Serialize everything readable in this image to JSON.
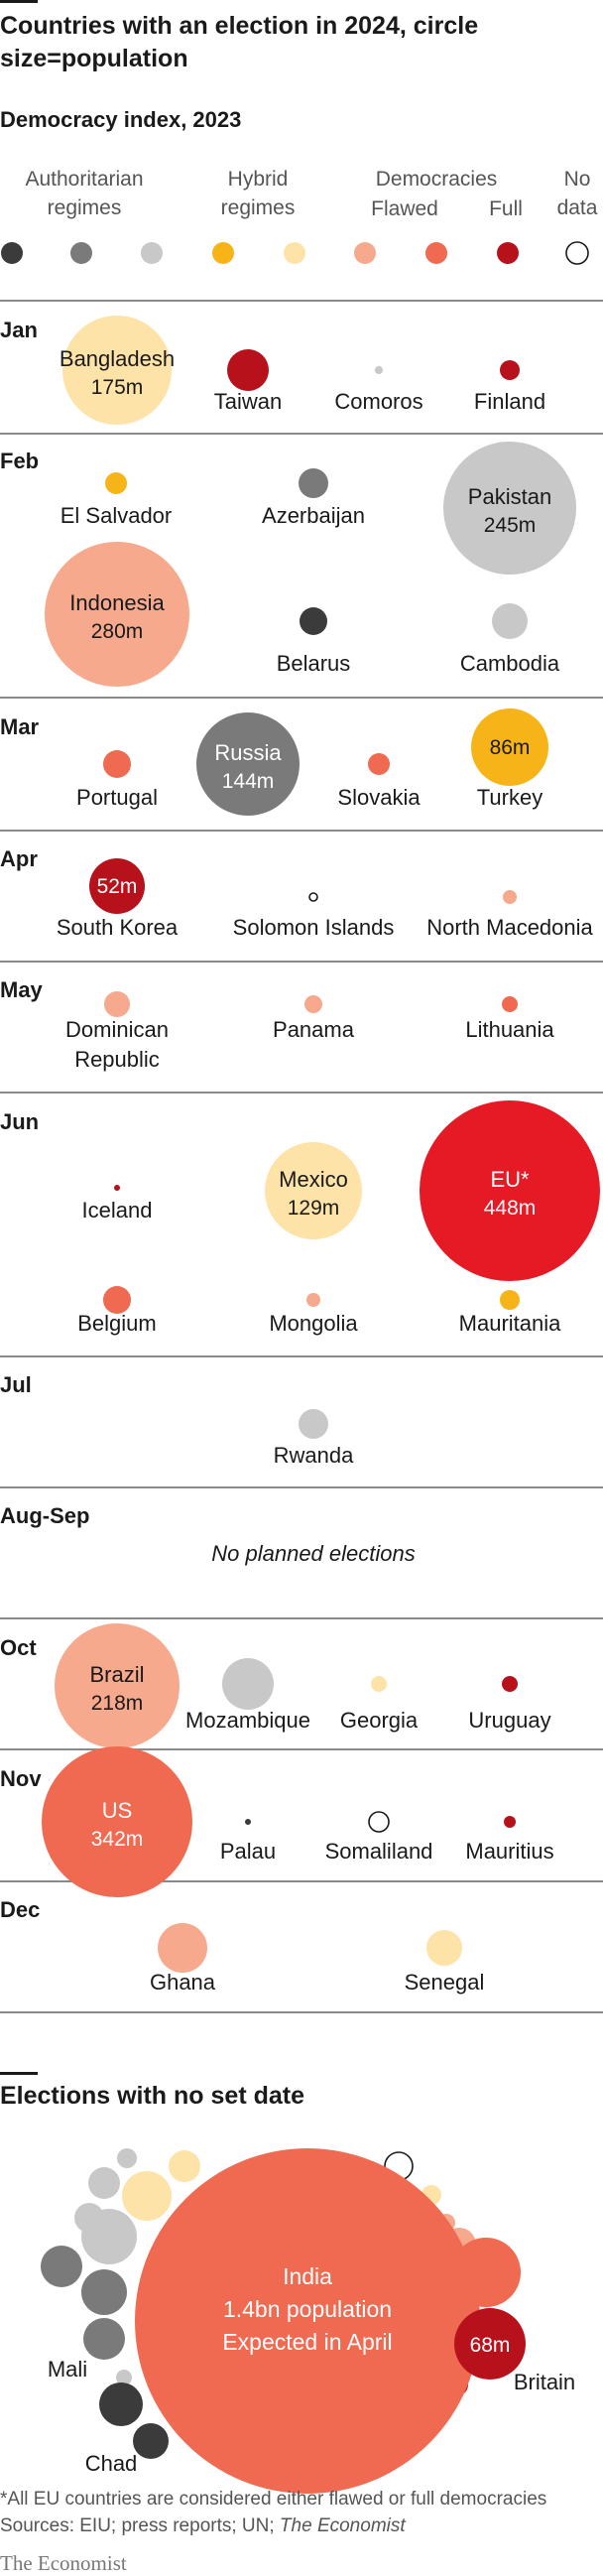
{
  "title": "Countries with an election in 2024, circle size=population",
  "subtitle": "Democracy index, 2023",
  "legend": {
    "groups": [
      {
        "label": "Authoritarian regimes"
      },
      {
        "label": "Hybrid regimes"
      },
      {
        "label": "Democracies"
      },
      {
        "label": "No data"
      }
    ],
    "sublabels": [
      "Flawed",
      "Full"
    ],
    "swatches": [
      "#3b3b3b",
      "#7a7a7a",
      "#c8c8c8",
      "#f6b418",
      "#fde3a8",
      "#f6a98c",
      "#ef6a50",
      "#b7121c",
      "#ffffff"
    ]
  },
  "months": [
    {
      "label": "Jan"
    },
    {
      "label": "Feb"
    },
    {
      "label": "Mar"
    },
    {
      "label": "Apr"
    },
    {
      "label": "May"
    },
    {
      "label": "Jun"
    },
    {
      "label": "Jul"
    },
    {
      "label": "Aug-Sep"
    },
    {
      "label": "Oct"
    },
    {
      "label": "Nov"
    },
    {
      "label": "Dec"
    }
  ],
  "no_planned": "No planned elections",
  "chart_data": {
    "type": "bubble",
    "title": "Countries with an election in 2024, circle size=population",
    "subtitle": "Democracy index, 2023",
    "category_colors": {
      "authoritarian_1": "#3b3b3b",
      "authoritarian_2": "#7a7a7a",
      "authoritarian_3": "#c8c8c8",
      "hybrid_1": "#f6b418",
      "hybrid_2": "#fde3a8",
      "flawed_1": "#f6a98c",
      "flawed_2": "#ef6a50",
      "full": "#b7121c",
      "eu": "#e51a24",
      "no_data": "#ffffff"
    },
    "elections": [
      {
        "month": "Jan",
        "country": "Bangladesh",
        "population": "175m",
        "category": "hybrid_2"
      },
      {
        "month": "Jan",
        "country": "Taiwan",
        "category": "full"
      },
      {
        "month": "Jan",
        "country": "Comoros",
        "category": "authoritarian_3"
      },
      {
        "month": "Jan",
        "country": "Finland",
        "category": "full"
      },
      {
        "month": "Feb",
        "country": "El Salvador",
        "category": "hybrid_1"
      },
      {
        "month": "Feb",
        "country": "Azerbaijan",
        "category": "authoritarian_2"
      },
      {
        "month": "Feb",
        "country": "Pakistan",
        "population": "245m",
        "category": "authoritarian_3"
      },
      {
        "month": "Feb",
        "country": "Indonesia",
        "population": "280m",
        "category": "flawed_1"
      },
      {
        "month": "Feb",
        "country": "Belarus",
        "category": "authoritarian_1"
      },
      {
        "month": "Feb",
        "country": "Cambodia",
        "category": "authoritarian_3"
      },
      {
        "month": "Mar",
        "country": "Portugal",
        "category": "flawed_2"
      },
      {
        "month": "Mar",
        "country": "Russia",
        "population": "144m",
        "category": "authoritarian_2"
      },
      {
        "month": "Mar",
        "country": "Slovakia",
        "category": "flawed_2"
      },
      {
        "month": "Mar",
        "country": "Turkey",
        "population": "86m",
        "category": "hybrid_1"
      },
      {
        "month": "Apr",
        "country": "South Korea",
        "population": "52m",
        "category": "full"
      },
      {
        "month": "Apr",
        "country": "Solomon Islands",
        "category": "no_data"
      },
      {
        "month": "Apr",
        "country": "North Macedonia",
        "category": "flawed_1"
      },
      {
        "month": "May",
        "country": "Dominican Republic",
        "category": "flawed_1"
      },
      {
        "month": "May",
        "country": "Panama",
        "category": "flawed_1"
      },
      {
        "month": "May",
        "country": "Lithuania",
        "category": "flawed_2"
      },
      {
        "month": "Jun",
        "country": "Iceland",
        "category": "full"
      },
      {
        "month": "Jun",
        "country": "Mexico",
        "population": "129m",
        "category": "hybrid_2"
      },
      {
        "month": "Jun",
        "country": "EU*",
        "population": "448m",
        "category": "eu"
      },
      {
        "month": "Jun",
        "country": "Belgium",
        "category": "flawed_2"
      },
      {
        "month": "Jun",
        "country": "Mongolia",
        "category": "flawed_1"
      },
      {
        "month": "Jun",
        "country": "Mauritania",
        "category": "hybrid_1"
      },
      {
        "month": "Jul",
        "country": "Rwanda",
        "category": "authoritarian_3"
      },
      {
        "month": "Oct",
        "country": "Brazil",
        "population": "218m",
        "category": "flawed_1"
      },
      {
        "month": "Oct",
        "country": "Mozambique",
        "category": "authoritarian_3"
      },
      {
        "month": "Oct",
        "country": "Georgia",
        "category": "hybrid_2"
      },
      {
        "month": "Oct",
        "country": "Uruguay",
        "category": "full"
      },
      {
        "month": "Nov",
        "country": "US",
        "population": "342m",
        "category": "flawed_2"
      },
      {
        "month": "Nov",
        "country": "Palau",
        "category": "authoritarian_1"
      },
      {
        "month": "Nov",
        "country": "Somaliland",
        "category": "no_data"
      },
      {
        "month": "Nov",
        "country": "Mauritius",
        "category": "full"
      },
      {
        "month": "Dec",
        "country": "Ghana",
        "category": "flawed_1"
      },
      {
        "month": "Dec",
        "country": "Senegal",
        "category": "hybrid_2"
      }
    ],
    "no_set_date": {
      "title": "Elections with no set date",
      "highlights": [
        {
          "country": "India",
          "lines": [
            "India",
            "1.4bn population",
            "Expected in April"
          ],
          "category": "flawed_2"
        },
        {
          "country": "Britain",
          "population": "68m",
          "category": "full"
        },
        {
          "country": "Mali",
          "category": "authoritarian_2"
        },
        {
          "country": "Chad",
          "category": "authoritarian_1"
        }
      ]
    }
  },
  "footnote": "*All EU countries are considered either flawed or full democracies",
  "sources": {
    "prefix": "Sources: EIU; press reports; UN; ",
    "italic": "The Economist"
  },
  "brand": "The Economist"
}
